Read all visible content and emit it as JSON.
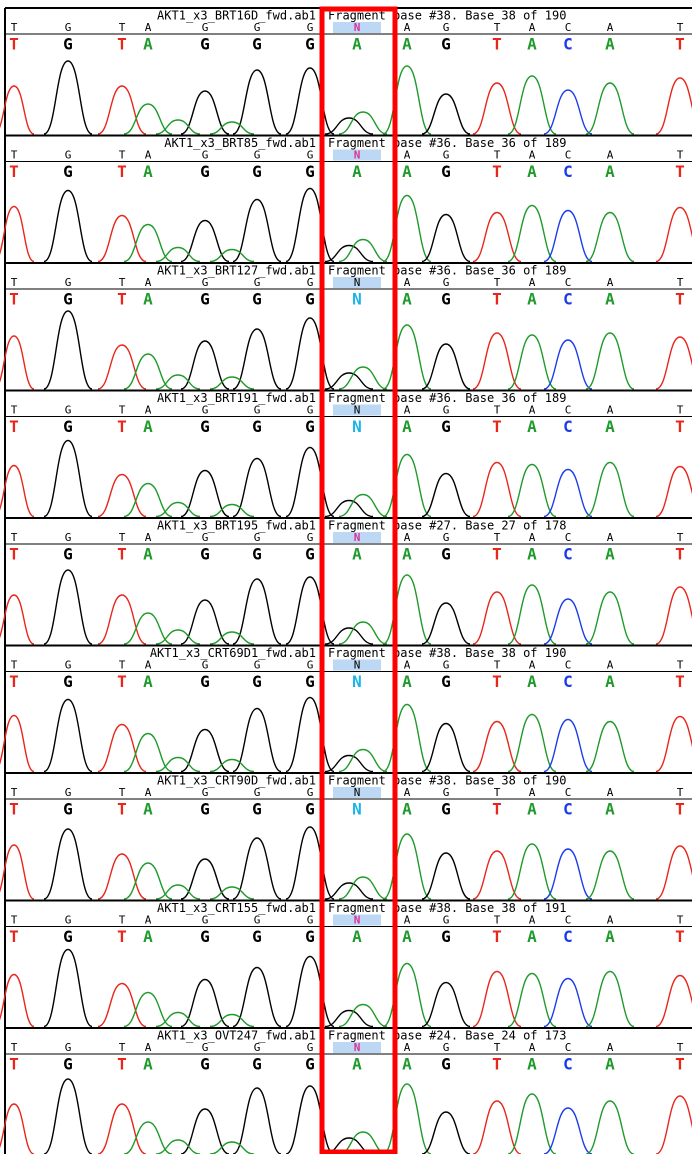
{
  "panels": [
    {
      "file": "AKT1_x3_BRT16D_fwd.ab1",
      "fragment": "Fragment base #38. Base 38 of 190",
      "reference": [
        "T",
        "G",
        "T",
        "A",
        "G",
        "G",
        "G",
        "N",
        "A",
        "G",
        "T",
        "A",
        "C",
        "A",
        "T"
      ],
      "called": [
        "T",
        "G",
        "T",
        "A",
        "G",
        "G",
        "G",
        "A",
        "A",
        "G",
        "T",
        "A",
        "C",
        "A",
        "T"
      ],
      "n_color": "#e0309a"
    },
    {
      "file": "AKT1_x3_BRT85_fwd.ab1",
      "fragment": "Fragment base #36. Base 36 of 189",
      "reference": [
        "T",
        "G",
        "T",
        "A",
        "G",
        "G",
        "G",
        "N",
        "A",
        "G",
        "T",
        "A",
        "C",
        "A",
        "T"
      ],
      "called": [
        "T",
        "G",
        "T",
        "A",
        "G",
        "G",
        "G",
        "A",
        "A",
        "G",
        "T",
        "A",
        "C",
        "A",
        "T"
      ],
      "n_color": "#e0309a"
    },
    {
      "file": "AKT1_x3_BRT127_fwd.ab1",
      "fragment": "Fragment base #36. Base 36 of 189",
      "reference": [
        "T",
        "G",
        "T",
        "A",
        "G",
        "G",
        "G",
        "N",
        "A",
        "G",
        "T",
        "A",
        "C",
        "A",
        "T"
      ],
      "called": [
        "T",
        "G",
        "T",
        "A",
        "G",
        "G",
        "G",
        "N",
        "A",
        "G",
        "T",
        "A",
        "C",
        "A",
        "T"
      ],
      "n_color": "#000000"
    },
    {
      "file": "AKT1_x3_BRT191_fwd.ab1",
      "fragment": "Fragment base #36. Base 36 of 189",
      "reference": [
        "T",
        "G",
        "T",
        "A",
        "G",
        "G",
        "G",
        "N",
        "A",
        "G",
        "T",
        "A",
        "C",
        "A",
        "T"
      ],
      "called": [
        "T",
        "G",
        "T",
        "A",
        "G",
        "G",
        "G",
        "N",
        "A",
        "G",
        "T",
        "A",
        "C",
        "A",
        "T"
      ],
      "n_color": "#000000"
    },
    {
      "file": "AKT1_x3_BRT195_fwd.ab1",
      "fragment": "Fragment base #27. Base 27 of 178",
      "reference": [
        "T",
        "G",
        "T",
        "A",
        "G",
        "G",
        "G",
        "N",
        "A",
        "G",
        "T",
        "A",
        "C",
        "A",
        "T"
      ],
      "called": [
        "T",
        "G",
        "T",
        "A",
        "G",
        "G",
        "G",
        "A",
        "A",
        "G",
        "T",
        "A",
        "C",
        "A",
        "T"
      ],
      "n_color": "#e0309a"
    },
    {
      "file": "AKT1_x3_CRT69D1_fwd.ab1",
      "fragment": "Fragment base #38. Base 38 of 190",
      "reference": [
        "T",
        "G",
        "T",
        "A",
        "G",
        "G",
        "G",
        "N",
        "A",
        "G",
        "T",
        "A",
        "C",
        "A",
        "T"
      ],
      "called": [
        "T",
        "G",
        "T",
        "A",
        "G",
        "G",
        "G",
        "N",
        "A",
        "G",
        "T",
        "A",
        "C",
        "A",
        "T"
      ],
      "n_color": "#000000"
    },
    {
      "file": "AKT1_x3_CRT90D_fwd.ab1",
      "fragment": "Fragment base #38. Base 38 of 190",
      "reference": [
        "T",
        "G",
        "T",
        "A",
        "G",
        "G",
        "G",
        "N",
        "A",
        "G",
        "T",
        "A",
        "C",
        "A",
        "T"
      ],
      "called": [
        "T",
        "G",
        "T",
        "A",
        "G",
        "G",
        "G",
        "N",
        "A",
        "G",
        "T",
        "A",
        "C",
        "A",
        "T"
      ],
      "n_color": "#000000"
    },
    {
      "file": "AKT1_x3_CRT155_fwd.ab1",
      "fragment": "Fragment base #38. Base 38 of 191",
      "reference": [
        "T",
        "G",
        "T",
        "A",
        "G",
        "G",
        "G",
        "N",
        "A",
        "G",
        "T",
        "A",
        "C",
        "A",
        "T"
      ],
      "called": [
        "T",
        "G",
        "T",
        "A",
        "G",
        "G",
        "G",
        "A",
        "A",
        "G",
        "T",
        "A",
        "C",
        "A",
        "T"
      ],
      "n_color": "#e0309a"
    },
    {
      "file": "AKT1_x3_OVT247_fwd.ab1",
      "fragment": "Fragment base #24. Base 24 of 173",
      "reference": [
        "T",
        "G",
        "T",
        "A",
        "G",
        "G",
        "G",
        "N",
        "A",
        "G",
        "T",
        "A",
        "C",
        "A",
        "T"
      ],
      "called": [
        "T",
        "G",
        "T",
        "A",
        "G",
        "G",
        "G",
        "A",
        "A",
        "G",
        "T",
        "A",
        "C",
        "A",
        "T"
      ],
      "n_color": "#e0309a"
    }
  ]
}
